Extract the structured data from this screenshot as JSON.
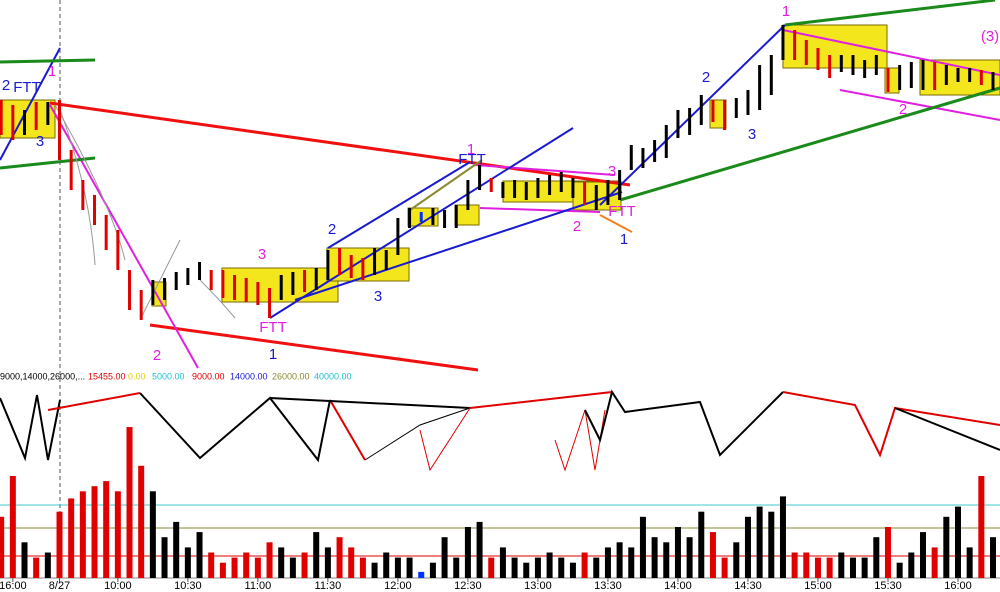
{
  "chart_data": [
    {
      "type": "ohlc",
      "x": [
        -1,
        0,
        1,
        2,
        3,
        4,
        5,
        6,
        7,
        8,
        9,
        10,
        11,
        12,
        13,
        14,
        15,
        16,
        17,
        18,
        19,
        20,
        21,
        22,
        23,
        24,
        25,
        26,
        27,
        28,
        29,
        30,
        31,
        32,
        33,
        34,
        35,
        36,
        37,
        38,
        39,
        40,
        41,
        42,
        43,
        44,
        45,
        46,
        47,
        48,
        49,
        50,
        51,
        52,
        53,
        54,
        55,
        56,
        57,
        58,
        59,
        60,
        61,
        62,
        63,
        64,
        65,
        66,
        67,
        68,
        69,
        70,
        71,
        72,
        73,
        74,
        75,
        76,
        77,
        78,
        79,
        80,
        81,
        82,
        83,
        84
      ],
      "high": [
        270,
        265,
        260,
        268,
        268,
        270,
        220,
        190,
        175,
        155,
        140,
        100,
        80,
        90,
        92,
        98,
        102,
        108,
        100,
        100,
        95,
        92,
        88,
        82,
        95,
        98,
        100,
        102,
        120,
        122,
        115,
        112,
        122,
        120,
        152,
        162,
        158,
        162,
        160,
        165,
        190,
        205,
        192,
        188,
        190,
        188,
        192,
        195,
        198,
        192,
        188,
        185,
        190,
        200,
        225,
        222,
        230,
        245,
        260,
        262,
        275,
        270,
        270,
        272,
        280,
        305,
        315,
        345,
        340,
        330,
        322,
        315,
        315,
        315,
        310,
        315,
        302,
        305,
        308,
        310,
        308,
        305,
        302,
        302,
        300,
        298
      ],
      "low": [
        235,
        230,
        235,
        240,
        245,
        210,
        180,
        160,
        145,
        120,
        100,
        60,
        50,
        65,
        70,
        80,
        85,
        90,
        80,
        72,
        70,
        68,
        65,
        52,
        70,
        75,
        78,
        80,
        90,
        95,
        92,
        90,
        95,
        100,
        115,
        142,
        148,
        145,
        142,
        142,
        160,
        180,
        178,
        172,
        172,
        170,
        172,
        175,
        178,
        172,
        165,
        160,
        165,
        170,
        200,
        202,
        208,
        212,
        232,
        235,
        245,
        248,
        240,
        252,
        255,
        260,
        275,
        310,
        310,
        305,
        300,
        292,
        298,
        295,
        292,
        295,
        278,
        280,
        282,
        280,
        280,
        285,
        288,
        288,
        285,
        280
      ],
      "colors": [
        "#e00000",
        "#e00000",
        "#000000",
        "#e00000",
        "#000000",
        "#e00000",
        "#e00000",
        "#e00000",
        "#e00000",
        "#e00000",
        "#e00000",
        "#e00000",
        "#e00000",
        "#000000",
        "#000000",
        "#000000",
        "#000000",
        "#000000",
        "#e00000",
        "#e00000",
        "#e00000",
        "#e00000",
        "#e00000",
        "#e00000",
        "#000000",
        "#000000",
        "#e00000",
        "#000000",
        "#000000",
        "#e00000",
        "#e00000",
        "#e00000",
        "#000000",
        "#000000",
        "#000000",
        "#000000",
        "#0033ff",
        "#000000",
        "#000000",
        "#000000",
        "#000000",
        "#000000",
        "#e00000",
        "#000000",
        "#000000",
        "#000000",
        "#000000",
        "#000000",
        "#000000",
        "#000000",
        "#e00000",
        "#000000",
        "#000000",
        "#000000",
        "#000000",
        "#000000",
        "#000000",
        "#000000",
        "#000000",
        "#000000",
        "#000000",
        "#e00000",
        "#e00000",
        "#000000",
        "#000000",
        "#000000",
        "#000000",
        "#000000",
        "#e00000",
        "#e00000",
        "#e00000",
        "#e00000",
        "#000000",
        "#000000",
        "#000000",
        "#000000",
        "#e00000",
        "#000000",
        "#000000",
        "#000000",
        "#e00000",
        "#000000",
        "#000000",
        "#000000",
        "#e00000",
        "#000000"
      ],
      "xlim": [
        -1.1,
        84.6
      ],
      "ylim": [
        0,
        370
      ],
      "annotations": [
        "2",
        "FTT",
        "1",
        "3",
        "2",
        "3",
        "FTT",
        "1",
        "2",
        "3",
        "1",
        "FTT",
        "3",
        "FTT",
        "2",
        "1",
        "2",
        "3",
        "1",
        "2",
        "(3)"
      ]
    },
    {
      "type": "bar",
      "values": [
        60,
        100,
        35,
        20,
        25,
        65,
        78,
        85,
        90,
        95,
        85,
        148,
        110,
        85,
        40,
        55,
        30,
        45,
        25,
        15,
        20,
        25,
        20,
        35,
        30,
        20,
        25,
        45,
        30,
        40,
        30,
        20,
        15,
        25,
        20,
        20,
        6,
        15,
        40,
        20,
        50,
        55,
        20,
        30,
        20,
        15,
        20,
        25,
        20,
        15,
        25,
        20,
        30,
        35,
        30,
        60,
        40,
        35,
        50,
        40,
        65,
        45,
        20,
        35,
        60,
        70,
        65,
        80,
        25,
        25,
        20,
        20,
        25,
        20,
        20,
        40,
        50,
        15,
        25,
        45,
        30,
        60,
        70,
        30,
        100,
        40
      ],
      "ylim": [
        0,
        150
      ],
      "xticks": [
        {
          "value": 0,
          "label": "16:00"
        },
        {
          "value": 4,
          "label": "8/27"
        },
        {
          "value": 9,
          "label": "10:00"
        },
        {
          "value": 15,
          "label": "10:30"
        },
        {
          "value": 21,
          "label": "11:00"
        },
        {
          "value": 27,
          "label": "11:30"
        },
        {
          "value": 33,
          "label": "12:00"
        },
        {
          "value": 39,
          "label": "12:30"
        },
        {
          "value": 45,
          "label": "13:00"
        },
        {
          "value": 51,
          "label": "13:30"
        },
        {
          "value": 57,
          "label": "14:00"
        },
        {
          "value": 63,
          "label": "14:30"
        },
        {
          "value": 69,
          "label": "15:00"
        },
        {
          "value": 75,
          "label": "15:30"
        },
        {
          "value": 81,
          "label": "16:00"
        }
      ],
      "legend_labels": [
        "9000,14000,26000,...",
        "15455.00",
        "0.00",
        "5000.00",
        "9000.00",
        "14000.00",
        "26000.00",
        "40000.00"
      ]
    }
  ]
}
